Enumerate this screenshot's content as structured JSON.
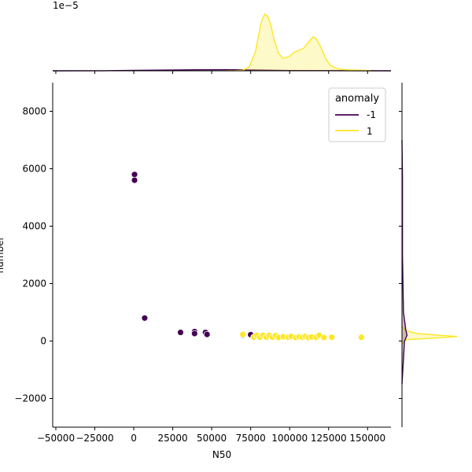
{
  "chart_data": {
    "type": "scatter",
    "title": "",
    "xlabel": "N50",
    "ylabel": "number",
    "xlim": [
      -52000,
      165000
    ],
    "ylim": [
      -3000,
      9000
    ],
    "xticks": [
      -50000,
      -25000,
      0,
      25000,
      50000,
      75000,
      100000,
      125000,
      150000
    ],
    "yticks": [
      -2000,
      0,
      2000,
      4000,
      6000,
      8000
    ],
    "xtick_labels": [
      "−50000",
      "−25000",
      "0",
      "25000",
      "50000",
      "75000",
      "100000",
      "125000",
      "150000"
    ],
    "ytick_labels": [
      "−2000",
      "0",
      "2000",
      "4000",
      "6000",
      "8000"
    ],
    "grid": false,
    "legend": {
      "title": "anomaly",
      "placement": "top-right",
      "entries": [
        {
          "label": "-1",
          "color": "#440154"
        },
        {
          "label": "1",
          "color": "#fde725"
        }
      ]
    },
    "series": [
      {
        "name": "-1",
        "color": "#440154",
        "x": [
          500,
          500,
          7000,
          30000,
          39000,
          39000,
          46000,
          47000,
          70000,
          75000
        ],
        "y": [
          5800,
          5600,
          800,
          300,
          330,
          260,
          300,
          230,
          200,
          220
        ]
      },
      {
        "name": "1",
        "color": "#fde725",
        "x": [
          70000,
          77000,
          79000,
          81000,
          83000,
          85000,
          87000,
          89000,
          91000,
          93000,
          96000,
          99000,
          101000,
          104000,
          106000,
          108000,
          110000,
          112000,
          114000,
          117000,
          119000,
          122000,
          127000,
          146000
        ],
        "y": [
          230,
          130,
          200,
          130,
          200,
          130,
          200,
          130,
          190,
          120,
          150,
          130,
          160,
          120,
          150,
          130,
          160,
          120,
          140,
          130,
          200,
          120,
          130,
          130
        ]
      }
    ],
    "marginal_top": {
      "type": "kde",
      "scale_label": "1e−5",
      "series": [
        {
          "name": "-1",
          "color": "#440154",
          "x": [
            -52000,
            -20000,
            0,
            20000,
            40000,
            60000,
            80000,
            100000,
            165000
          ],
          "density": [
            0.0,
            0.002,
            0.008,
            0.012,
            0.018,
            0.02,
            0.012,
            0.004,
            0.0
          ]
        },
        {
          "name": "1",
          "color": "#fde725",
          "x": [
            60000,
            65000,
            70000,
            74000,
            78000,
            80000,
            82000,
            84000,
            86000,
            88000,
            90000,
            93000,
            96000,
            100000,
            103000,
            106000,
            109000,
            112000,
            115000,
            117000,
            120000,
            123000,
            126000,
            130000,
            135000,
            140000,
            146000,
            152000
          ],
          "density": [
            0.0,
            0.003,
            0.01,
            0.07,
            0.33,
            0.62,
            0.88,
            1.0,
            0.96,
            0.8,
            0.55,
            0.3,
            0.22,
            0.26,
            0.33,
            0.36,
            0.4,
            0.5,
            0.6,
            0.57,
            0.42,
            0.22,
            0.1,
            0.04,
            0.02,
            0.015,
            0.01,
            0.0
          ]
        }
      ]
    },
    "marginal_right": {
      "type": "kde",
      "series": [
        {
          "name": "1",
          "color": "#fde725",
          "y": [
            -100,
            50,
            100,
            130,
            160,
            200,
            260,
            350,
            500
          ],
          "density": [
            0.0,
            0.02,
            0.12,
            0.18,
            0.22,
            0.15,
            0.06,
            0.02,
            0.0
          ]
        },
        {
          "name": "-1",
          "color": "#440154",
          "y": [
            -1500,
            0,
            200,
            400,
            1000,
            3000,
            5700,
            7000
          ],
          "density": [
            0.0,
            0.01,
            0.02,
            0.015,
            0.006,
            0.002,
            0.002,
            0.0
          ]
        }
      ]
    }
  }
}
